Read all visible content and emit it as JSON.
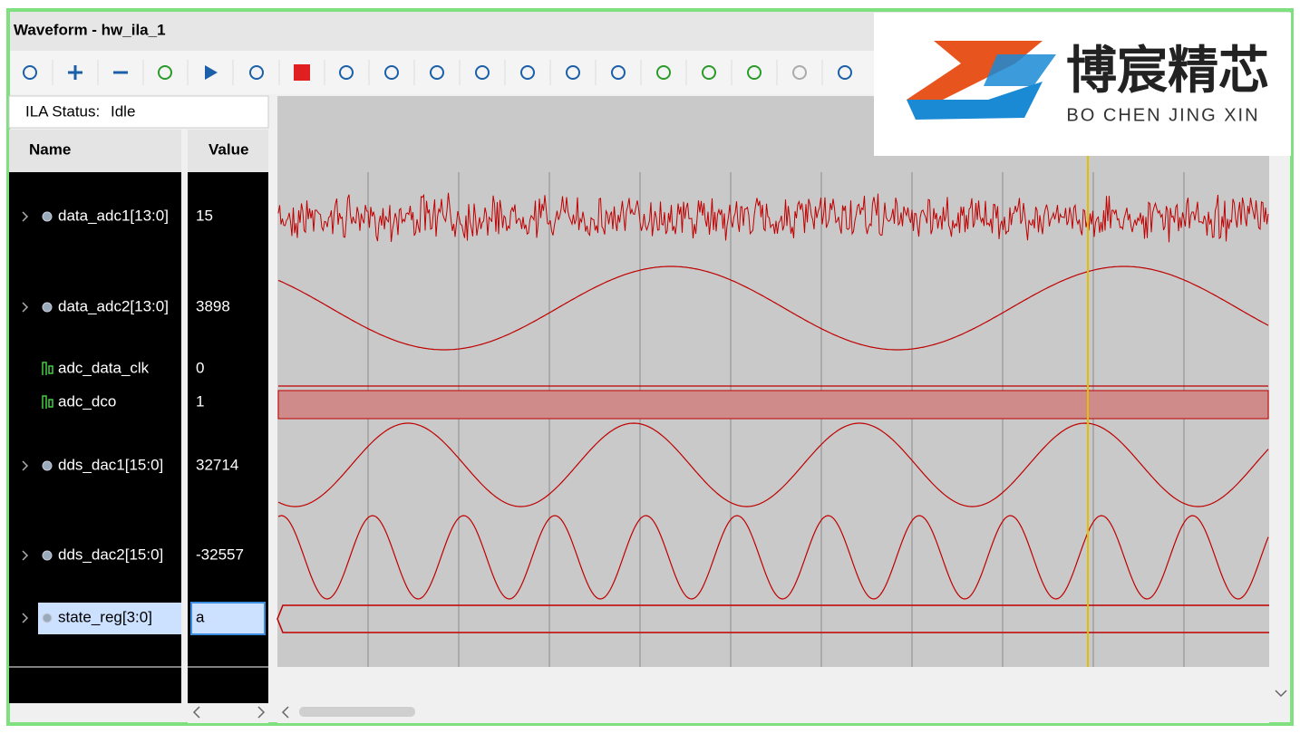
{
  "window": {
    "title": "Waveform - hw_ila_1"
  },
  "status": {
    "label": "ILA Status:",
    "value": "Idle"
  },
  "columns": {
    "name": "Name",
    "value": "Value"
  },
  "signals": [
    {
      "name": "data_adc1[13:0]",
      "value": "15"
    },
    {
      "name": "data_adc2[13:0]",
      "value": "3898"
    },
    {
      "name": "adc_data_clk",
      "value": "0"
    },
    {
      "name": "adc_dco",
      "value": "1"
    },
    {
      "name": "dds_dac1[15:0]",
      "value": "32714"
    },
    {
      "name": "dds_dac2[15:0]",
      "value": "-32557"
    },
    {
      "name": "state_reg[3:0]",
      "value": "a"
    }
  ],
  "logo": {
    "chinese": "博宸精芯",
    "pinyin": "BO CHEN JING XIN"
  }
}
